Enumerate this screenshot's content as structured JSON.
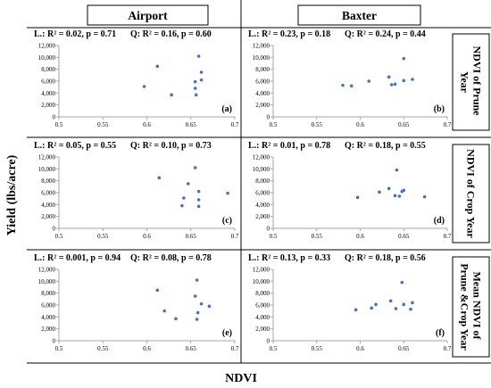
{
  "figure": {
    "column_titles": [
      "Airport",
      "Baxter"
    ],
    "row_titles": [
      [
        "NDVI of Prune",
        "Year"
      ],
      [
        "NDVI of Crop Year"
      ],
      [
        "Mean NDVI of",
        "Prune &Crop Year"
      ]
    ],
    "ylabel": "Yield (lbs/acre)",
    "xlabel": "NDVI",
    "colors": {
      "point": "#4472c4",
      "axis": "#a6a6a6",
      "border": "#000000"
    }
  },
  "chart_data": [
    {
      "type": "scatter",
      "panel": "(a)",
      "stats": [
        "L.: R² = 0.02, p = 0.71",
        "Q: R² = 0.16, p = 0.60"
      ],
      "xlim": [
        0.5,
        0.7
      ],
      "ylim": [
        0,
        12000
      ],
      "xticks": [
        "0.5",
        "0.55",
        "0.6",
        "0.65",
        "0.7"
      ],
      "yticks": [
        "0",
        "2,000",
        "4,000",
        "6,000",
        "8,000",
        "10,000",
        "12,000"
      ],
      "points": [
        [
          0.597,
          5100
        ],
        [
          0.612,
          8500
        ],
        [
          0.628,
          3700
        ],
        [
          0.655,
          5900
        ],
        [
          0.655,
          4800
        ],
        [
          0.656,
          3700
        ],
        [
          0.659,
          10200
        ],
        [
          0.662,
          7500
        ],
        [
          0.662,
          6200
        ]
      ]
    },
    {
      "type": "scatter",
      "panel": "(b)",
      "stats": [
        "L.: R² = 0.23, p = 0.18",
        "Q: R² = 0.24, p = 0.44"
      ],
      "xlim": [
        0.5,
        0.7
      ],
      "ylim": [
        0,
        12000
      ],
      "xticks": [
        "0.5",
        "0.55",
        "0.6",
        "0.65",
        "0.7"
      ],
      "yticks": [
        "0",
        "2,000",
        "4,000",
        "6,000",
        "8,000",
        "10,000",
        "12,000"
      ],
      "points": [
        [
          0.58,
          5300
        ],
        [
          0.59,
          5200
        ],
        [
          0.61,
          6000
        ],
        [
          0.633,
          6700
        ],
        [
          0.636,
          5400
        ],
        [
          0.64,
          5500
        ],
        [
          0.65,
          9800
        ],
        [
          0.65,
          6100
        ],
        [
          0.66,
          6300
        ]
      ]
    },
    {
      "type": "scatter",
      "panel": "(c)",
      "stats": [
        "L.: R² = 0.05, p = 0.55",
        "Q: R² = 0.10, p = 0.73"
      ],
      "xlim": [
        0.5,
        0.7
      ],
      "ylim": [
        0,
        12000
      ],
      "xticks": [
        "0.5",
        "0.55",
        "0.6",
        "0.65",
        "0.7"
      ],
      "yticks": [
        "0",
        "2,000",
        "4,000",
        "6,000",
        "8,000",
        "10,000",
        "12,000"
      ],
      "points": [
        [
          0.614,
          8500
        ],
        [
          0.642,
          5100
        ],
        [
          0.647,
          7500
        ],
        [
          0.64,
          3800
        ],
        [
          0.655,
          10200
        ],
        [
          0.659,
          6200
        ],
        [
          0.659,
          4800
        ],
        [
          0.659,
          3700
        ],
        [
          0.692,
          5900
        ]
      ]
    },
    {
      "type": "scatter",
      "panel": "(d)",
      "stats": [
        "L.: R² = 0.01, p = 0.78",
        "Q: R² = 0.18, p = 0.55"
      ],
      "xlim": [
        0.5,
        0.7
      ],
      "ylim": [
        0,
        12000
      ],
      "xticks": [
        "0.5",
        "0.55",
        "0.6",
        "0.65",
        "0.7"
      ],
      "yticks": [
        "0",
        "2,000",
        "4,000",
        "6,000",
        "8,000",
        "10,000",
        "12,000"
      ],
      "points": [
        [
          0.597,
          5200
        ],
        [
          0.622,
          6100
        ],
        [
          0.633,
          6700
        ],
        [
          0.64,
          5500
        ],
        [
          0.642,
          9800
        ],
        [
          0.645,
          5400
        ],
        [
          0.648,
          6200
        ],
        [
          0.65,
          6400
        ],
        [
          0.674,
          5300
        ]
      ]
    },
    {
      "type": "scatter",
      "panel": "(e)",
      "stats": [
        "L.: R² = 0.001, p = 0.94",
        "Q: R² = 0.08, p = 0.78"
      ],
      "xlim": [
        0.5,
        0.7
      ],
      "ylim": [
        0,
        12000
      ],
      "xticks": [
        "0.5",
        "0.55",
        "0.6",
        "0.65",
        "0.7"
      ],
      "yticks": [
        "0",
        "2,000",
        "4,000",
        "6,000",
        "8,000",
        "10,000",
        "12,000"
      ],
      "points": [
        [
          0.612,
          8500
        ],
        [
          0.62,
          5000
        ],
        [
          0.633,
          3700
        ],
        [
          0.655,
          7500
        ],
        [
          0.657,
          10200
        ],
        [
          0.658,
          4700
        ],
        [
          0.657,
          3600
        ],
        [
          0.662,
          6200
        ],
        [
          0.671,
          5800
        ]
      ]
    },
    {
      "type": "scatter",
      "panel": "(f)",
      "stats": [
        "L.: R² = 0.13, p = 0.33",
        "Q: R² = 0.18, p = 0.56"
      ],
      "xlim": [
        0.5,
        0.7
      ],
      "ylim": [
        0,
        12000
      ],
      "xticks": [
        "0.5",
        "0.55",
        "0.6",
        "0.65",
        "0.7"
      ],
      "yticks": [
        "0",
        "2,000",
        "4,000",
        "6,000",
        "8,000",
        "10,000",
        "12,000"
      ],
      "points": [
        [
          0.595,
          5200
        ],
        [
          0.613,
          5500
        ],
        [
          0.618,
          6100
        ],
        [
          0.635,
          6700
        ],
        [
          0.641,
          5400
        ],
        [
          0.648,
          9800
        ],
        [
          0.65,
          6100
        ],
        [
          0.658,
          5300
        ],
        [
          0.66,
          6400
        ]
      ]
    }
  ]
}
